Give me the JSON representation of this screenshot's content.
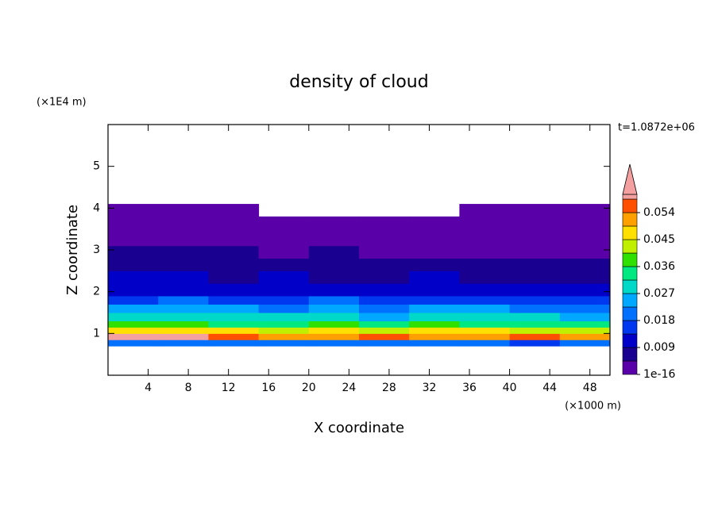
{
  "chart_data": {
    "type": "contour",
    "title": "density of cloud",
    "x_label": "X coordinate",
    "y_label": "Z coordinate",
    "x_unit": "(×1000 m)",
    "y_unit": "(×1E4 m)",
    "annotation": "t=1.0872e+06",
    "xlim": [
      0,
      50
    ],
    "ylim": [
      0,
      6
    ],
    "xticks": [
      4,
      8,
      12,
      16,
      20,
      24,
      28,
      32,
      36,
      40,
      44,
      48
    ],
    "yticks": [
      1,
      2,
      3,
      4,
      5
    ],
    "x_edges": [
      0,
      5,
      10,
      15,
      20,
      25,
      30,
      35,
      40,
      45,
      50
    ],
    "y_edges": [
      0.7,
      0.85,
      1.0,
      1.15,
      1.3,
      1.5,
      1.7,
      1.9,
      2.2,
      2.5,
      2.8,
      3.1,
      3.5,
      3.8,
      4.1
    ],
    "z": [
      [
        0.02,
        0.021,
        0.019,
        0.02,
        0.022,
        0.02,
        0.019,
        0.021,
        0.017,
        0.02
      ],
      [
        0.06,
        0.06,
        0.055,
        0.052,
        0.05,
        0.054,
        0.05,
        0.052,
        0.055,
        0.05
      ],
      [
        0.046,
        0.048,
        0.045,
        0.044,
        0.047,
        0.043,
        0.045,
        0.046,
        0.044,
        0.042
      ],
      [
        0.036,
        0.038,
        0.035,
        0.034,
        0.037,
        0.033,
        0.036,
        0.035,
        0.034,
        0.032
      ],
      [
        0.029,
        0.03,
        0.028,
        0.027,
        0.029,
        0.026,
        0.028,
        0.029,
        0.027,
        0.026
      ],
      [
        0.024,
        0.025,
        0.023,
        0.022,
        0.024,
        0.022,
        0.023,
        0.024,
        0.022,
        0.021
      ],
      [
        0.017,
        0.018,
        0.016,
        0.017,
        0.018,
        0.016,
        0.017,
        0.016,
        0.015,
        0.016
      ],
      [
        0.012,
        0.013,
        0.012,
        0.011,
        0.012,
        0.011,
        0.012,
        0.011,
        0.01,
        0.011
      ],
      [
        0.009,
        0.009,
        0.008,
        0.009,
        0.008,
        0.008,
        0.009,
        0.008,
        0.007,
        0.008
      ],
      [
        0.006,
        0.006,
        0.006,
        0.005,
        0.006,
        0.005,
        0.006,
        0.005,
        0.005,
        0.005
      ],
      [
        0.005,
        0.005,
        0.005,
        0.004,
        0.005,
        0.004,
        0.004,
        0.004,
        0.004,
        0.004
      ],
      [
        0.002,
        0.002,
        0.002,
        0.002,
        0.002,
        0.002,
        0.002,
        0.002,
        0.002,
        0.002
      ],
      [
        0.001,
        0.001,
        0.001,
        0.001,
        0.001,
        0.001,
        0.001,
        0.001,
        0.001,
        0.001
      ],
      [
        0.001,
        0.001,
        0.001,
        null,
        null,
        null,
        null,
        0.001,
        0.001,
        0.001
      ]
    ],
    "colorbar": {
      "levels": [
        1e-16,
        0.0045,
        0.009,
        0.0135,
        0.018,
        0.0225,
        0.027,
        0.0315,
        0.036,
        0.0405,
        0.045,
        0.0495,
        0.054,
        0.0585
      ],
      "colors": [
        "#5a00a8",
        "#1a0090",
        "#0000c8",
        "#0038f0",
        "#0070ff",
        "#00a8ff",
        "#00d8c8",
        "#00e880",
        "#30e000",
        "#c0f000",
        "#ffe000",
        "#ffa000",
        "#ff5000"
      ],
      "extend_color": "#f4a0a0",
      "ticks": [
        1e-16,
        0.009,
        0.018,
        0.027,
        0.036,
        0.045,
        0.054
      ]
    }
  }
}
